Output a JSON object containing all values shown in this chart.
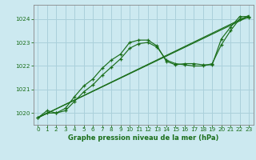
{
  "title": "Graphe pression niveau de la mer (hPa)",
  "background_color": "#cce9f0",
  "grid_color": "#aad0db",
  "line_color": "#1a6e1a",
  "marker_color": "#1a6e1a",
  "xlim": [
    -0.5,
    23.5
  ],
  "ylim": [
    1019.5,
    1024.6
  ],
  "yticks": [
    1020,
    1021,
    1022,
    1023,
    1024
  ],
  "xticks": [
    0,
    1,
    2,
    3,
    4,
    5,
    6,
    7,
    8,
    9,
    10,
    11,
    12,
    13,
    14,
    15,
    16,
    17,
    18,
    19,
    20,
    21,
    22,
    23
  ],
  "series": [
    {
      "x": [
        0,
        1,
        2,
        3,
        4,
        5,
        6,
        7,
        8,
        9,
        10,
        11,
        12,
        13,
        14,
        15,
        16,
        17,
        18,
        19,
        20,
        21,
        22,
        23
      ],
      "y": [
        1019.8,
        1020.1,
        1020.0,
        1020.2,
        1020.7,
        1021.15,
        1021.45,
        1021.9,
        1022.25,
        1022.5,
        1023.0,
        1023.1,
        1023.1,
        1022.85,
        1022.2,
        1022.05,
        1022.1,
        1022.1,
        1022.05,
        1022.05,
        1023.15,
        1023.65,
        1024.1,
        1024.1
      ]
    },
    {
      "x": [
        0,
        1,
        2,
        3,
        4,
        5,
        6,
        7,
        8,
        9,
        10,
        11,
        12,
        13,
        14,
        15,
        16,
        17,
        18,
        19,
        20,
        21,
        22,
        23
      ],
      "y": [
        1019.8,
        1020.0,
        1020.0,
        1020.1,
        1020.5,
        1020.9,
        1021.2,
        1021.6,
        1021.95,
        1022.3,
        1022.75,
        1022.95,
        1023.0,
        1022.8,
        1022.25,
        1022.1,
        1022.05,
        1022.0,
        1022.0,
        1022.1,
        1022.9,
        1023.5,
        1024.0,
        1024.05
      ]
    },
    {
      "x": [
        0,
        23
      ],
      "y": [
        1019.8,
        1024.1
      ]
    },
    {
      "x": [
        0,
        23
      ],
      "y": [
        1019.8,
        1024.15
      ]
    }
  ]
}
